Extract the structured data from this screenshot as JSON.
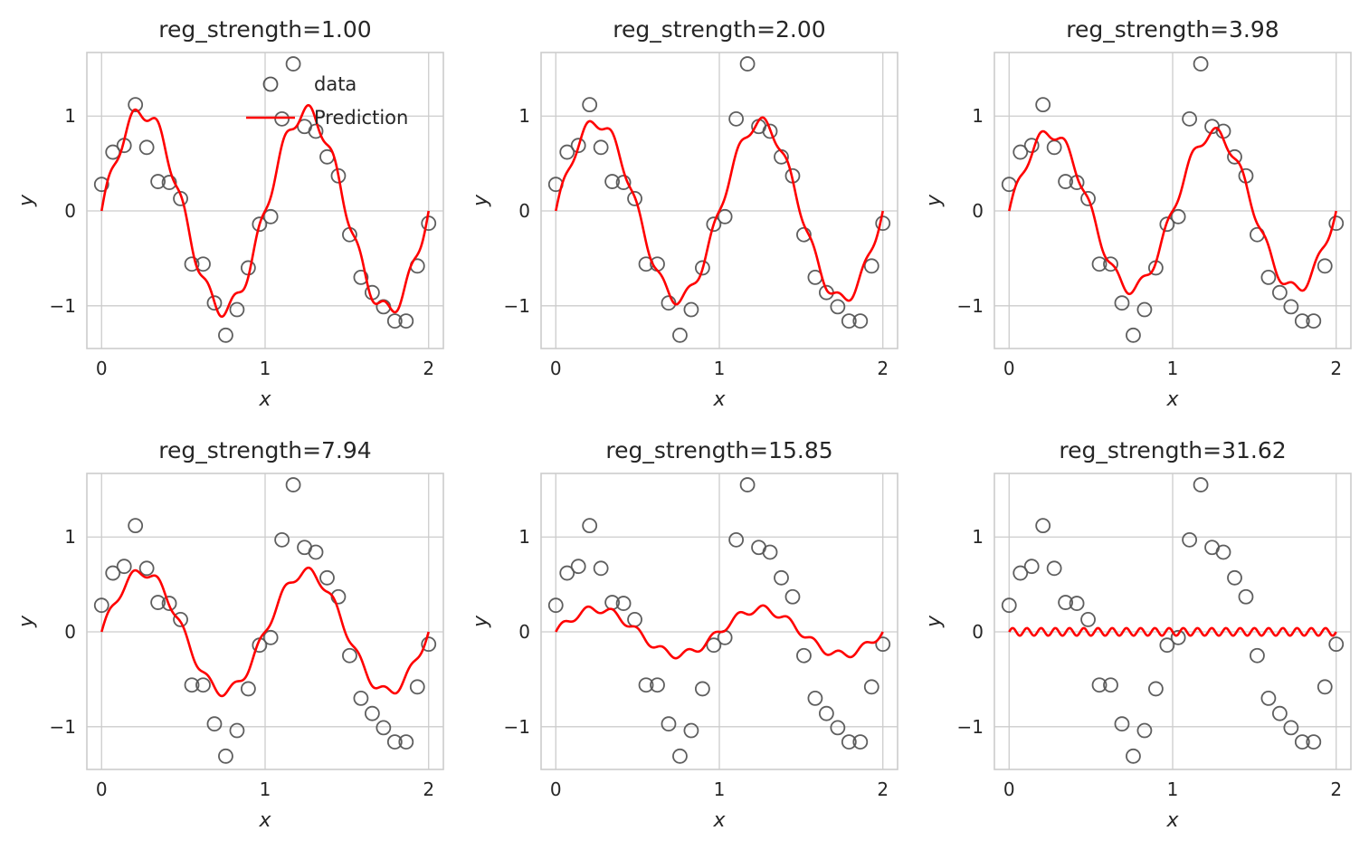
{
  "chart_data": {
    "type": "scatter+line",
    "shared": {
      "xlabel": "x",
      "ylabel": "y",
      "xlim": [
        -0.09,
        2.09
      ],
      "ylim": [
        -1.45,
        1.67
      ],
      "xticks": [
        0,
        1,
        2
      ],
      "xtick_labels": [
        "0",
        "1",
        "2"
      ],
      "yticks": [
        -1,
        0,
        1
      ],
      "ytick_labels": [
        "−1",
        "0",
        "1"
      ],
      "grid": true,
      "data_x": [
        0.0,
        0.069,
        0.138,
        0.207,
        0.276,
        0.345,
        0.414,
        0.483,
        0.552,
        0.621,
        0.69,
        0.759,
        0.828,
        0.897,
        0.966,
        1.034,
        1.103,
        1.172,
        1.241,
        1.31,
        1.379,
        1.448,
        1.517,
        1.586,
        1.655,
        1.724,
        1.793,
        1.862,
        1.931,
        2.0
      ],
      "data_y": [
        0.28,
        0.62,
        0.69,
        1.12,
        0.67,
        0.31,
        0.3,
        0.13,
        -0.56,
        -0.56,
        -0.97,
        -1.31,
        -1.04,
        -0.6,
        -0.14,
        -0.06,
        0.97,
        1.55,
        0.89,
        0.84,
        0.57,
        0.37,
        -0.25,
        -0.7,
        -0.86,
        -1.01,
        -1.16,
        -1.16,
        -0.58,
        -0.13
      ],
      "colors": {
        "data_marker": "#555555",
        "prediction": "#ff0000",
        "grid": "#cccccc",
        "spine": "#cccccc"
      }
    },
    "legend": {
      "placement": "upper-right",
      "panel": 0,
      "entries": [
        "data",
        "Prediction"
      ]
    },
    "panels": [
      {
        "title": "reg_strength=1.00",
        "prediction": {
          "base_amp": 1.04,
          "wiggle_amp": 0.08,
          "wiggle_freq": 6.5
        }
      },
      {
        "title": "reg_strength=2.00",
        "prediction": {
          "base_amp": 0.93,
          "wiggle_amp": 0.06,
          "wiggle_freq": 6.5
        }
      },
      {
        "title": "reg_strength=3.98",
        "prediction": {
          "base_amp": 0.82,
          "wiggle_amp": 0.06,
          "wiggle_freq": 6.5
        }
      },
      {
        "title": "reg_strength=7.94",
        "prediction": {
          "base_amp": 0.63,
          "wiggle_amp": 0.05,
          "wiggle_freq": 6.5
        }
      },
      {
        "title": "reg_strength=15.85",
        "prediction": {
          "base_amp": 0.24,
          "wiggle_amp": 0.04,
          "wiggle_freq": 6.5
        }
      },
      {
        "title": "reg_strength=31.62",
        "prediction": {
          "base_amp": 0.0,
          "wiggle_amp": 0.04,
          "wiggle_freq": 11.5
        }
      }
    ]
  }
}
